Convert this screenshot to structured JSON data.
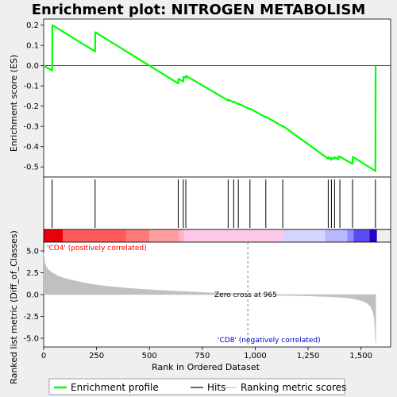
{
  "colors": {
    "enrichment": "#00ff00",
    "hits": "#000000",
    "ranking": "#c0c0c0",
    "pos_label": "#ff0000",
    "neg_label": "#0000cc",
    "zero_line": "#808080"
  },
  "chart_data": {
    "type": "line",
    "title": "Enrichment plot: NITROGEN METABOLISM",
    "es_panel": {
      "ylabel": "Enrichment score (ES)",
      "ylim": [
        -0.55,
        0.23
      ],
      "yticks": [
        0.2,
        0.1,
        0.0,
        -0.1,
        -0.2,
        -0.3,
        -0.4,
        -0.5
      ],
      "ytick_labels": [
        "0.2",
        "0.1",
        "0.0",
        "-0.1",
        "-0.2",
        "-0.3",
        "-0.4",
        "-0.5"
      ],
      "series": [
        {
          "name": "Enrichment profile",
          "x": [
            0,
            40,
            41,
            243,
            244,
            636,
            637,
            660,
            661,
            672,
            673,
            872,
            873,
            898,
            899,
            920,
            921,
            975,
            976,
            1050,
            1051,
            1130,
            1131,
            1345,
            1346,
            1360,
            1361,
            1375,
            1376,
            1393,
            1394,
            1400,
            1401,
            1460,
            1461,
            1568,
            1569
          ],
          "y": [
            0.0,
            -0.025,
            0.2,
            0.07,
            0.165,
            -0.088,
            -0.065,
            -0.078,
            -0.055,
            -0.06,
            -0.05,
            -0.172,
            -0.168,
            -0.18,
            -0.178,
            -0.19,
            -0.188,
            -0.215,
            -0.213,
            -0.255,
            -0.253,
            -0.3,
            -0.298,
            -0.46,
            -0.452,
            -0.465,
            -0.455,
            -0.46,
            -0.452,
            -0.463,
            -0.448,
            -0.452,
            -0.45,
            -0.485,
            -0.45,
            -0.52,
            0.0
          ]
        }
      ]
    },
    "hits": {
      "positions": [
        40,
        243,
        636,
        660,
        672,
        872,
        898,
        920,
        975,
        1050,
        1130,
        1345,
        1360,
        1375,
        1400,
        1460,
        1568
      ]
    },
    "colorbar": {
      "segments": [
        {
          "from": 0,
          "to": 90,
          "color": "#e8000a"
        },
        {
          "from": 90,
          "to": 390,
          "color": "#ff5a5a"
        },
        {
          "from": 390,
          "to": 500,
          "color": "#ff7a7a"
        },
        {
          "from": 500,
          "to": 640,
          "color": "#ff9c9c"
        },
        {
          "from": 640,
          "to": 665,
          "color": "#ffb4c8"
        },
        {
          "from": 665,
          "to": 1130,
          "color": "#ffc8e8"
        },
        {
          "from": 1130,
          "to": 1330,
          "color": "#d4d4ff"
        },
        {
          "from": 1330,
          "to": 1435,
          "color": "#b8b8ff"
        },
        {
          "from": 1435,
          "to": 1465,
          "color": "#8c8cff"
        },
        {
          "from": 1465,
          "to": 1540,
          "color": "#5a4cf0"
        },
        {
          "from": 1540,
          "to": 1575,
          "color": "#2a00c8"
        }
      ]
    },
    "ranking_panel": {
      "ylabel": "Ranked list metric (Diff_of_Classes)",
      "xlabel": "Rank in Ordered Dataset",
      "xlim": [
        0,
        1640
      ],
      "xticks": [
        0,
        250,
        500,
        750,
        1000,
        1250,
        1500
      ],
      "xtick_labels": [
        "0",
        "250",
        "500",
        "750",
        "1,000",
        "1,250",
        "1,500"
      ],
      "ylim": [
        -6,
        6
      ],
      "yticks": [
        5.0,
        2.5,
        0.0,
        -2.5,
        -5.0
      ],
      "ytick_labels": [
        "5.0",
        "2.5",
        "0.0",
        "-2.5",
        "-5.0"
      ],
      "profile": {
        "x": [
          0,
          2,
          5,
          10,
          20,
          40,
          70,
          100,
          150,
          200,
          250,
          300,
          400,
          500,
          600,
          700,
          800,
          900,
          965,
          1050,
          1150,
          1250,
          1300,
          1350,
          1400,
          1450,
          1480,
          1510,
          1530,
          1545,
          1555,
          1562,
          1566,
          1569
        ],
        "y": [
          4.8,
          4.3,
          3.7,
          3.3,
          2.9,
          2.5,
          2.1,
          1.85,
          1.55,
          1.3,
          1.1,
          0.95,
          0.72,
          0.55,
          0.42,
          0.3,
          0.18,
          0.08,
          0.0,
          -0.05,
          -0.1,
          -0.15,
          -0.2,
          -0.24,
          -0.3,
          -0.42,
          -0.55,
          -0.75,
          -1.0,
          -1.35,
          -1.9,
          -2.6,
          -4.0,
          -5.6
        ]
      },
      "zero_cross": 965,
      "annotations": {
        "pos": "'CD4' (positively correlated)",
        "neg": "'CD8' (negatively correlated)",
        "zero": "Zero cross at 965"
      }
    },
    "legend": [
      {
        "label": "Enrichment profile",
        "color": "#00ff00"
      },
      {
        "label": "Hits",
        "color": "#000000"
      },
      {
        "label": "Ranking metric scores",
        "color": "#c0c0c0"
      }
    ]
  }
}
